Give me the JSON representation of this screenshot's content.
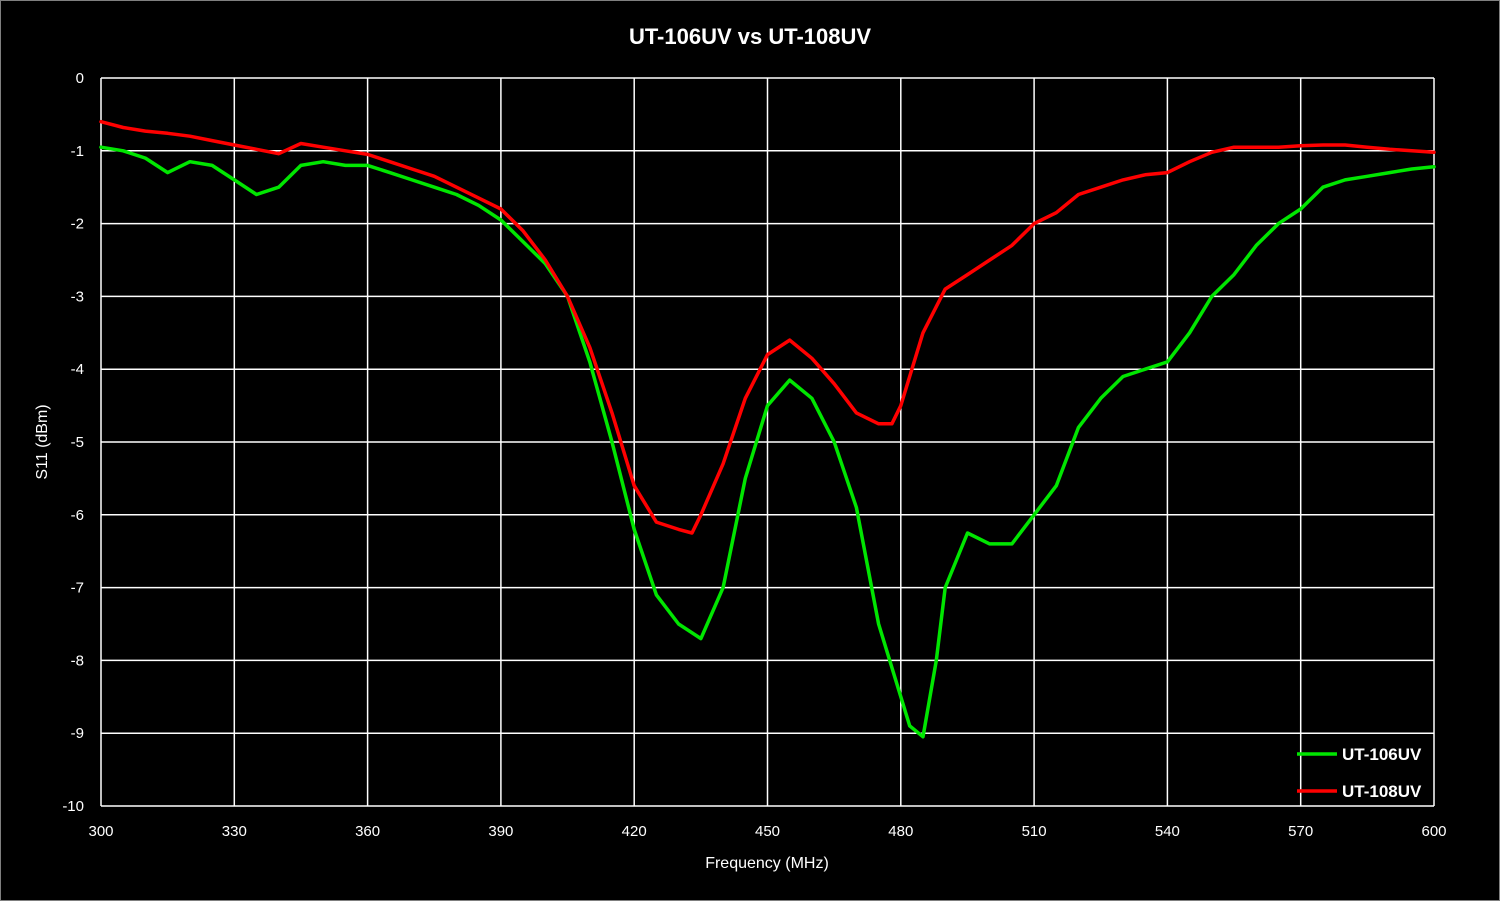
{
  "chart_data": {
    "type": "line",
    "title": "UT-106UV vs UT-108UV",
    "xlabel": "Frequency (MHz)",
    "ylabel": "S11 (dBm)",
    "xlim": [
      300,
      600
    ],
    "ylim": [
      -10,
      0
    ],
    "x_ticks": [
      300,
      330,
      360,
      390,
      420,
      450,
      480,
      510,
      540,
      570,
      600
    ],
    "y_ticks": [
      0,
      -1,
      -2,
      -3,
      -4,
      -5,
      -6,
      -7,
      -8,
      -9,
      -10
    ],
    "grid": true,
    "legend_position": "bottom-right",
    "series": [
      {
        "name": "UT-106UV",
        "color": "#00e600",
        "x": [
          300,
          305,
          310,
          315,
          320,
          325,
          330,
          335,
          340,
          345,
          350,
          355,
          360,
          365,
          370,
          375,
          380,
          385,
          390,
          395,
          400,
          405,
          410,
          415,
          420,
          425,
          430,
          435,
          440,
          445,
          450,
          455,
          460,
          465,
          470,
          475,
          480,
          482,
          485,
          488,
          490,
          495,
          500,
          505,
          510,
          515,
          520,
          525,
          530,
          535,
          540,
          545,
          550,
          555,
          560,
          565,
          570,
          575,
          580,
          585,
          590,
          595,
          600
        ],
        "y": [
          -0.95,
          -1.0,
          -1.1,
          -1.3,
          -1.15,
          -1.2,
          -1.4,
          -1.6,
          -1.5,
          -1.2,
          -1.15,
          -1.2,
          -1.2,
          -1.3,
          -1.4,
          -1.5,
          -1.6,
          -1.75,
          -1.95,
          -2.25,
          -2.55,
          -3.0,
          -3.9,
          -5.0,
          -6.2,
          -7.1,
          -7.5,
          -7.7,
          -7.0,
          -5.5,
          -4.5,
          -4.15,
          -4.4,
          -5.0,
          -5.9,
          -7.5,
          -8.5,
          -8.9,
          -9.05,
          -8.0,
          -7.0,
          -6.25,
          -6.4,
          -6.4,
          -6.0,
          -5.6,
          -4.8,
          -4.4,
          -4.1,
          -4.0,
          -3.9,
          -3.5,
          -3.0,
          -2.7,
          -2.3,
          -2.0,
          -1.8,
          -1.5,
          -1.4,
          -1.35,
          -1.3,
          -1.25,
          -1.22
        ]
      },
      {
        "name": "UT-108UV",
        "color": "#ff0000",
        "x": [
          300,
          305,
          310,
          315,
          320,
          325,
          330,
          335,
          340,
          345,
          350,
          355,
          360,
          365,
          370,
          375,
          380,
          385,
          390,
          395,
          400,
          405,
          410,
          415,
          420,
          425,
          430,
          433,
          435,
          440,
          445,
          450,
          455,
          460,
          465,
          470,
          475,
          478,
          480,
          485,
          490,
          495,
          500,
          505,
          510,
          515,
          520,
          525,
          530,
          535,
          540,
          545,
          550,
          555,
          560,
          565,
          570,
          575,
          580,
          585,
          590,
          595,
          600
        ],
        "y": [
          -0.6,
          -0.68,
          -0.73,
          -0.76,
          -0.8,
          -0.86,
          -0.92,
          -0.98,
          -1.04,
          -0.9,
          -0.95,
          -1.0,
          -1.05,
          -1.15,
          -1.25,
          -1.35,
          -1.5,
          -1.65,
          -1.8,
          -2.1,
          -2.5,
          -3.0,
          -3.7,
          -4.6,
          -5.6,
          -6.1,
          -6.2,
          -6.25,
          -6.0,
          -5.3,
          -4.4,
          -3.8,
          -3.6,
          -3.85,
          -4.2,
          -4.6,
          -4.75,
          -4.75,
          -4.5,
          -3.5,
          -2.9,
          -2.7,
          -2.5,
          -2.3,
          -2.0,
          -1.85,
          -1.6,
          -1.5,
          -1.4,
          -1.33,
          -1.3,
          -1.15,
          -1.02,
          -0.95,
          -0.95,
          -0.95,
          -0.93,
          -0.92,
          -0.92,
          -0.95,
          -0.98,
          -1.0,
          -1.02
        ]
      }
    ]
  }
}
